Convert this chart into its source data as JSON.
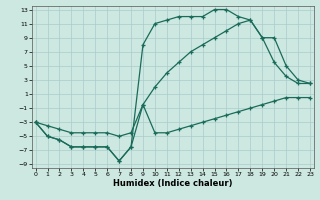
{
  "xlabel": "Humidex (Indice chaleur)",
  "bg_color": "#cce8e0",
  "grid_color": "#aacccc",
  "line_color": "#1a6b5a",
  "xlim": [
    0,
    23
  ],
  "ylim": [
    -9.5,
    13.5
  ],
  "xticks": [
    0,
    1,
    2,
    3,
    4,
    5,
    6,
    7,
    8,
    9,
    10,
    11,
    12,
    13,
    14,
    15,
    16,
    17,
    18,
    19,
    20,
    21,
    22,
    23
  ],
  "yticks": [
    -9,
    -7,
    -5,
    -3,
    -1,
    1,
    3,
    5,
    7,
    9,
    11,
    13
  ],
  "c1_x": [
    0,
    1,
    2,
    3,
    4,
    5,
    6,
    7,
    8,
    9,
    10,
    11,
    12,
    13,
    14,
    15,
    16,
    17,
    18,
    19,
    20,
    21,
    22,
    23
  ],
  "c1_y": [
    -3,
    -5,
    -5.5,
    -6.5,
    -6.5,
    -6.5,
    -6.5,
    -8.5,
    -6.5,
    8,
    11,
    11.5,
    12,
    12,
    12,
    13,
    13,
    12,
    11.5,
    9,
    9,
    5,
    3,
    2.5
  ],
  "c2_x": [
    0,
    1,
    2,
    3,
    4,
    5,
    6,
    7,
    8,
    9,
    10,
    11,
    12,
    13,
    14,
    15,
    16,
    17,
    18,
    19,
    20,
    21,
    22,
    23
  ],
  "c2_y": [
    -3,
    -3.5,
    -4,
    -4.5,
    -4.5,
    -4.5,
    -4.5,
    -5,
    -4.5,
    -0.5,
    2,
    4,
    5.5,
    7,
    8,
    9,
    10,
    11,
    11.5,
    9,
    5.5,
    3.5,
    2.5,
    2.5
  ],
  "c3_x": [
    0,
    1,
    2,
    3,
    4,
    5,
    6,
    7,
    8,
    9,
    10,
    11,
    12,
    13,
    14,
    15,
    16,
    17,
    18,
    19,
    20,
    21,
    22,
    23
  ],
  "c3_y": [
    -3,
    -5,
    -5.5,
    -6.5,
    -6.5,
    -6.5,
    -6.5,
    -8.5,
    -6.5,
    -0.5,
    -4.5,
    -4.5,
    -4,
    -3.5,
    -3,
    -2.5,
    -2,
    -1.5,
    -1,
    -0.5,
    0,
    0.5,
    0.5,
    0.5
  ]
}
